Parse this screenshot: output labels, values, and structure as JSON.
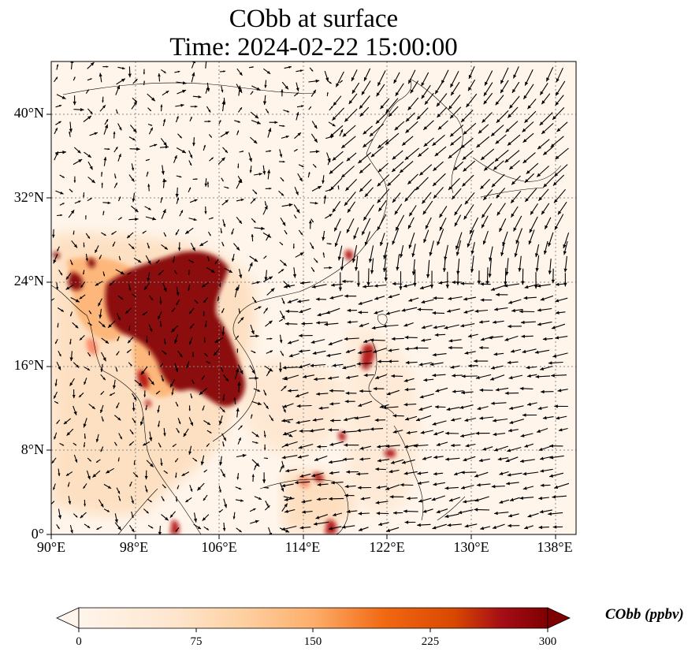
{
  "title": "CObb at surface",
  "subtitle": "Time: 2024-02-22 15:00:00",
  "map": {
    "lon_range": [
      90,
      139
    ],
    "lat_range": [
      0,
      45
    ],
    "x_ticks": [
      "90°E",
      "98°E",
      "106°E",
      "114°E",
      "122°E",
      "130°E",
      "138°E"
    ],
    "y_ticks": [
      "0°",
      "8°N",
      "16°N",
      "24°N",
      "32°N",
      "40°N"
    ],
    "gridlines": "dotted",
    "field": "CObb",
    "overlay": "wind vectors (quiver)"
  },
  "colorbar": {
    "label": "CObb (ppbv)",
    "ticks": [
      "0",
      "75",
      "150",
      "225",
      "300"
    ],
    "colormap": [
      "#fff5eb",
      "#fdd0a2",
      "#fdae6b",
      "#f16913",
      "#d94801",
      "#a50f15",
      "#7f0000"
    ],
    "extend": "both"
  }
}
